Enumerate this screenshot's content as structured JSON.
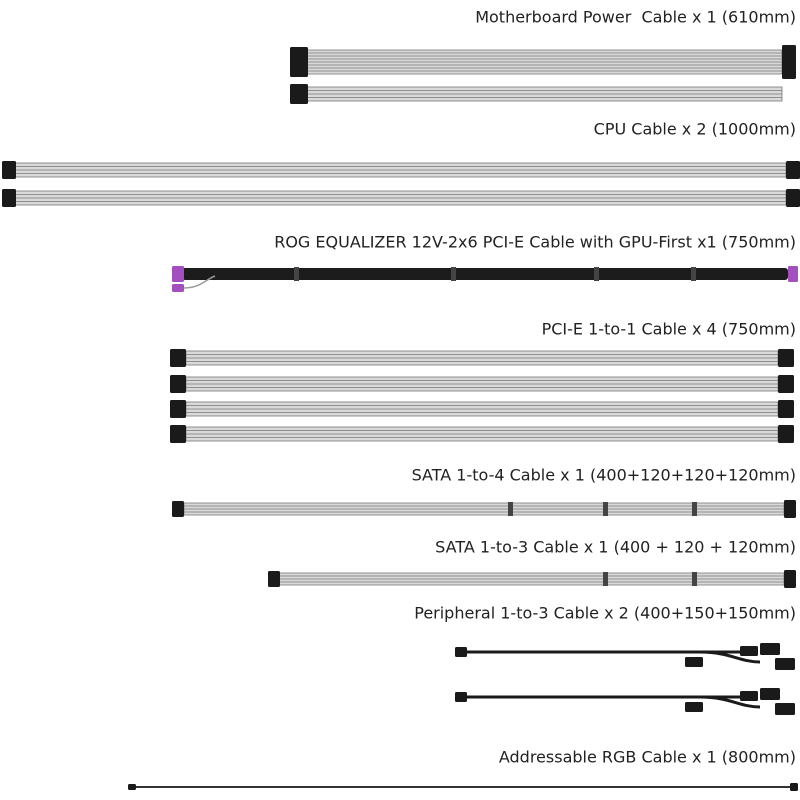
{
  "labels": [
    "Motherboard Power  Cable x 1 (610mm)",
    "CPU Cable x 2 (1000mm)",
    "ROG EQUALIZER 12V-2x6 PCI-E Cable with GPU-First x1 (750mm)",
    "PCI-E 1-to-1 Cable x 4 (750mm)",
    "SATA 1-to-4 Cable x 1 (400+120+120+120mm)",
    "SATA 1-to-3 Cable x 1 (400 + 120 + 120mm)",
    "Peripheral 1-to-3 Cable x 2 (400+150+150mm)",
    "Addressable RGB Cable x 1 (800mm)"
  ]
}
